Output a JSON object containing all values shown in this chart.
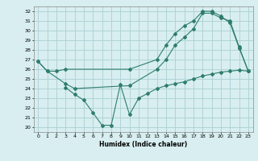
{
  "xlabel": "Humidex (Indice chaleur)",
  "bg_color": "#d8eef0",
  "grid_color": "#aad0d4",
  "line_color": "#2e7d6e",
  "xlim": [
    -0.5,
    23.5
  ],
  "ylim": [
    19.5,
    32.5
  ],
  "xticks": [
    0,
    1,
    2,
    3,
    4,
    5,
    6,
    7,
    8,
    9,
    10,
    11,
    12,
    13,
    14,
    15,
    16,
    17,
    18,
    19,
    20,
    21,
    22,
    23
  ],
  "yticks": [
    20,
    21,
    22,
    23,
    24,
    25,
    26,
    27,
    28,
    29,
    30,
    31,
    32
  ],
  "line1_x": [
    0,
    1,
    2,
    3,
    10,
    13,
    14,
    15,
    16,
    17,
    18,
    19,
    20,
    21,
    22,
    23
  ],
  "line1_y": [
    26.8,
    25.8,
    25.8,
    26.0,
    26.0,
    27.0,
    28.5,
    29.7,
    30.5,
    31.0,
    32.0,
    32.0,
    31.5,
    30.8,
    28.2,
    25.8
  ],
  "line2_x": [
    0,
    1,
    3,
    4,
    10,
    13,
    14,
    15,
    16,
    17,
    18,
    19,
    20,
    21,
    22,
    23
  ],
  "line2_y": [
    26.8,
    25.8,
    24.5,
    24.0,
    24.3,
    26.0,
    27.0,
    28.5,
    29.3,
    30.2,
    31.8,
    31.8,
    31.3,
    31.0,
    28.3,
    25.8
  ],
  "line3_x": [
    3,
    4,
    5,
    6,
    7,
    8,
    9,
    10,
    11,
    12,
    13,
    14,
    15,
    16,
    17,
    18,
    19,
    20,
    21,
    22,
    23
  ],
  "line3_y": [
    24.1,
    23.4,
    22.8,
    21.5,
    20.2,
    20.2,
    24.4,
    21.3,
    23.0,
    23.5,
    24.0,
    24.3,
    24.5,
    24.7,
    25.0,
    25.3,
    25.5,
    25.7,
    25.8,
    25.9,
    25.8
  ]
}
